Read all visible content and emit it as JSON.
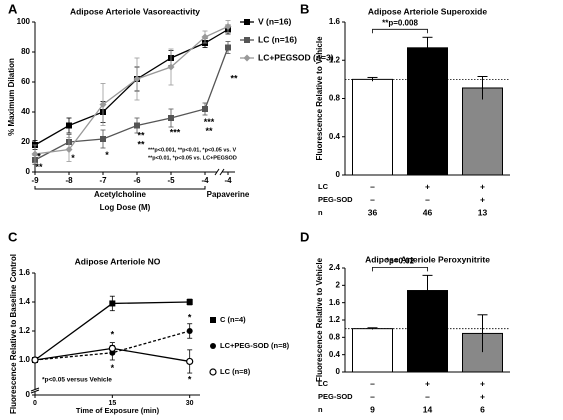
{
  "chart_data": [
    {
      "type": "line",
      "panel": "A",
      "title": "Adipose Arteriole Vasoreactivity",
      "ylabel": "% Maximum Dilation",
      "xlabel": "Log Dose (M)",
      "categories": [
        "-9",
        "-8",
        "-7",
        "-6",
        "-5",
        "-4",
        "-4"
      ],
      "xgroups": [
        {
          "label": "Acetylcholine",
          "from": 0,
          "to": 5
        },
        {
          "label": "Papaverine",
          "from": 6,
          "to": 6
        }
      ],
      "ylim": [
        0,
        100
      ],
      "yticks": [
        0,
        20,
        40,
        60,
        80,
        100
      ],
      "series": [
        {
          "name": "V (n=16)",
          "color": "#000000",
          "marker": "square",
          "values": [
            18,
            31,
            40,
            62,
            76,
            86,
            95
          ],
          "errors": [
            3,
            5,
            7,
            8,
            5,
            3,
            3
          ]
        },
        {
          "name": "LC (n=16)",
          "color": "#555555",
          "marker": "square",
          "values": [
            8,
            20,
            22,
            31,
            36,
            42,
            83
          ],
          "errors": [
            3,
            5,
            6,
            5,
            6,
            4,
            4
          ]
        },
        {
          "name": "LC+PEGSOD (n=3)",
          "color": "#999999",
          "marker": "diamond",
          "values": [
            12,
            15,
            45,
            62,
            70,
            90,
            97
          ],
          "errors": [
            6,
            8,
            14,
            14,
            12,
            4,
            4
          ]
        }
      ],
      "annotations": [
        {
          "text": "**",
          "x": 0,
          "y": 3,
          "color": "#000000"
        },
        {
          "text": "*",
          "x": 0,
          "y": 10,
          "color": "#888888"
        },
        {
          "text": "*",
          "x": 1,
          "y": 9,
          "color": "#000000"
        },
        {
          "text": "*",
          "x": 2,
          "y": 11,
          "color": "#000000"
        },
        {
          "text": "**",
          "x": 3,
          "y": 24,
          "color": "#000000"
        },
        {
          "text": "**",
          "x": 3,
          "y": 18,
          "color": "#888888"
        },
        {
          "text": "***",
          "x": 4,
          "y": 26,
          "color": "#000000"
        },
        {
          "text": "***",
          "x": 5,
          "y": 33,
          "color": "#000000"
        },
        {
          "text": "**",
          "x": 5,
          "y": 27,
          "color": "#888888"
        },
        {
          "text": "**",
          "x": 6,
          "y": 62,
          "color": "#000000"
        }
      ],
      "notes": [
        {
          "text": "***p<0.001, **p<0.01, *p<0.05 vs. V",
          "color": "#000000"
        },
        {
          "text": "**p<0.01, *p<0.05 vs. LC+PEGSOD",
          "color": "#888888"
        }
      ]
    },
    {
      "type": "bar",
      "panel": "B",
      "title": "Adipose Arteriole Superoxide",
      "ylabel": "Fluorescence Relative to Vehicle",
      "values": [
        1.0,
        1.33,
        0.91
      ],
      "errors": [
        0.02,
        0.11,
        0.12
      ],
      "colors": [
        "#ffffff",
        "#000000",
        "#888888"
      ],
      "ylim": [
        0,
        1.6
      ],
      "yticks": [
        0,
        0.4,
        0.8,
        1.2,
        1.6
      ],
      "reference_line": 1,
      "significance": {
        "label": "**p=0.008",
        "from": 0,
        "to": 1
      },
      "table": [
        {
          "label": "LC",
          "cells": [
            "–",
            "+",
            "+"
          ]
        },
        {
          "label": "PEG-SOD",
          "cells": [
            "–",
            "–",
            "+"
          ]
        },
        {
          "label": "n",
          "cells": [
            "36",
            "46",
            "13"
          ]
        }
      ]
    },
    {
      "type": "line",
      "panel": "C",
      "title": "Adipose Arteriole NO",
      "ylabel": "Fluorescence Relative to Baseline Control",
      "xlabel": "Time of Exposure (min)",
      "x": [
        0,
        15,
        30
      ],
      "xlim": [
        0,
        32
      ],
      "xticks": [
        0,
        15,
        30
      ],
      "ylim": [
        0,
        1.6
      ],
      "ybreak": 0.8,
      "yticks": [
        0,
        {
          "value": 1.0,
          "label": "1.0"
        },
        1.2,
        1.4,
        1.6
      ],
      "series": [
        {
          "name": "C (n=4)",
          "color": "#000000",
          "marker": "square",
          "values": [
            1.0,
            1.39,
            1.4
          ],
          "errors": [
            0,
            0.05,
            0.02
          ]
        },
        {
          "name": "LC+PEG-SOD (n=8)",
          "color": "#000000",
          "marker": "circle",
          "dash": true,
          "values": [
            1.0,
            1.05,
            1.2
          ],
          "errors": [
            0,
            0.05,
            0.05
          ]
        },
        {
          "name": "LC (n=8)",
          "color": "#000000",
          "marker": "open-circle",
          "values": [
            1.0,
            1.08,
            0.99
          ],
          "errors": [
            0,
            0.04,
            0.08
          ]
        }
      ],
      "annotations": [
        {
          "text": "*",
          "x": 15,
          "y": 1.17,
          "color": "#000000"
        },
        {
          "text": "*",
          "x": 15,
          "y": 0.94,
          "color": "#000000"
        },
        {
          "text": "*",
          "x": 30,
          "y": 1.29,
          "color": "#000000"
        },
        {
          "text": "*",
          "x": 30,
          "y": 0.86,
          "color": "#000000"
        }
      ],
      "notes": [
        {
          "text": "*p<0.05 versus Vehicle",
          "color": "#000000"
        }
      ]
    },
    {
      "type": "bar",
      "panel": "D",
      "title": "Adipose Arteriole Peroxynitrite",
      "ylabel": "Fluorescence Relative to Vehicle",
      "values": [
        1.0,
        1.88,
        0.89
      ],
      "errors": [
        0.02,
        0.35,
        0.43
      ],
      "colors": [
        "#ffffff",
        "#000000",
        "#888888"
      ],
      "ylim": [
        0,
        2.4
      ],
      "yticks": [
        0,
        0.4,
        0.8,
        1.2,
        1.6,
        2.0,
        2.4
      ],
      "reference_line": 1,
      "significance": {
        "label": "*p=0.02",
        "from": 0,
        "to": 1
      },
      "table": [
        {
          "label": "LC",
          "cells": [
            "–",
            "+",
            "+"
          ]
        },
        {
          "label": "PEG-SOD",
          "cells": [
            "–",
            "–",
            "+"
          ]
        },
        {
          "label": "n",
          "cells": [
            "9",
            "14",
            "6"
          ]
        }
      ]
    }
  ]
}
